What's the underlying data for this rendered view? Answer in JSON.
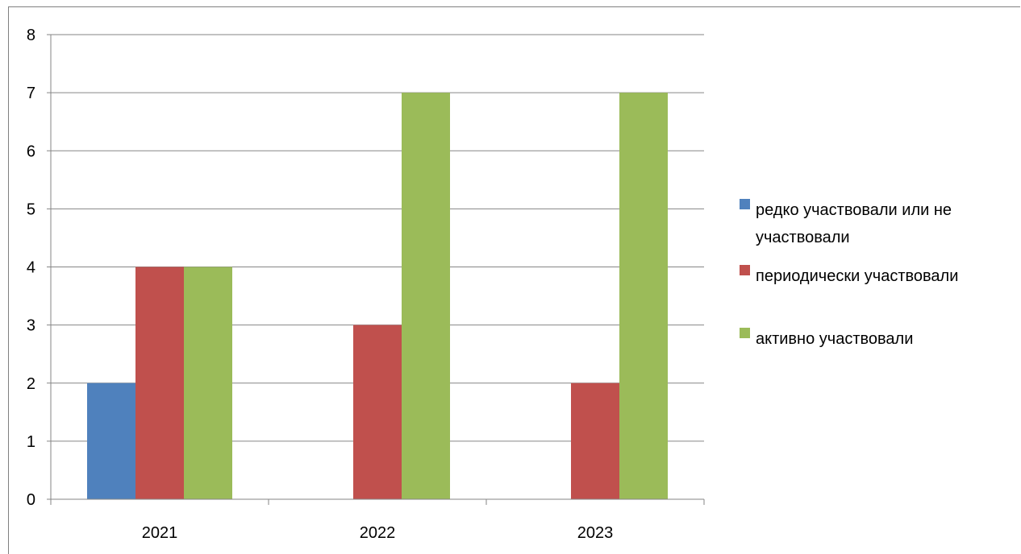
{
  "chart_data": {
    "type": "bar",
    "categories": [
      "2021",
      "2022",
      "2023"
    ],
    "series": [
      {
        "name": "редко участвовали или не участвовали",
        "values": [
          2,
          0,
          0
        ],
        "color": "#4f81bd"
      },
      {
        "name": "периодически участвовали",
        "values": [
          4,
          3,
          2
        ],
        "color": "#c0504d"
      },
      {
        "name": "активно участвовали",
        "values": [
          4,
          7,
          7
        ],
        "color": "#9bbb59"
      }
    ],
    "ylim": [
      0,
      8
    ],
    "yticks": [
      0,
      1,
      2,
      3,
      4,
      5,
      6,
      7,
      8
    ],
    "grid": true,
    "legend_position": "right",
    "legend_lines": [
      [
        "редко участвовали или не",
        "участвовали"
      ],
      [
        "периодически участвовали"
      ],
      [
        "активно участвовали"
      ]
    ]
  }
}
